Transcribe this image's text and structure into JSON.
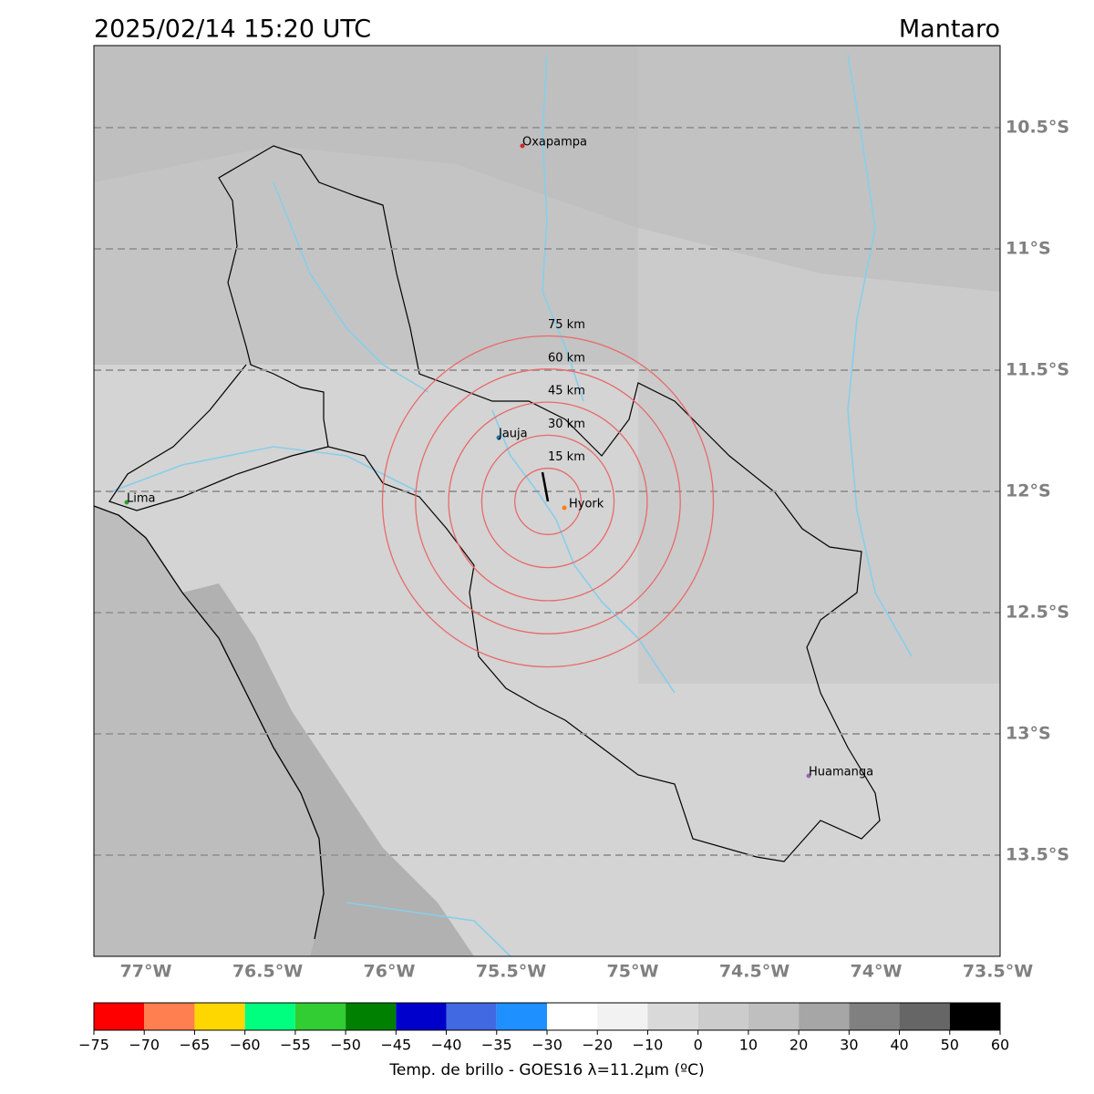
{
  "header": {
    "datetime": "2025/02/14 15:20 UTC",
    "region": "Mantaro"
  },
  "map": {
    "lon_labels": [
      "77°W",
      "76.5°W",
      "76°W",
      "75.5°W",
      "75°W",
      "74.5°W",
      "74°W",
      "73.5°W"
    ],
    "lat_labels": [
      "10.5°S",
      "11°S",
      "11.5°S",
      "12°S",
      "12.5°S",
      "13°S",
      "13.5°S"
    ],
    "cities": [
      {
        "name": "Oxapampa",
        "color": "#d62728"
      },
      {
        "name": "Jauja",
        "color": "#1f77b4"
      },
      {
        "name": "Lima",
        "color": "#2ca02c"
      },
      {
        "name": "Hyork",
        "color": "#ff7f0e"
      },
      {
        "name": "Huamanga",
        "color": "#9467bd"
      }
    ],
    "rings": [
      "15 km",
      "30 km",
      "45 km",
      "60 km",
      "75 km"
    ]
  },
  "colorbar": {
    "label": "Temp. de brillo - GOES16 λ=11.2μm (ºC)",
    "ticks": [
      "−75",
      "−70",
      "−65",
      "−60",
      "−55",
      "−50",
      "−45",
      "−40",
      "−35",
      "−30",
      "−20",
      "−10",
      "0",
      "10",
      "20",
      "30",
      "40",
      "50",
      "60"
    ],
    "colors": [
      "#ff0000",
      "#ff7f50",
      "#ffd700",
      "#00ff7f",
      "#32cd32",
      "#008000",
      "#0000cd",
      "#4169e1",
      "#1e90ff",
      "#ffffff",
      "#f2f2f2",
      "#d9d9d9",
      "#cccccc",
      "#bfbfbf",
      "#a6a6a6",
      "#808080",
      "#666666",
      "#000000"
    ]
  }
}
